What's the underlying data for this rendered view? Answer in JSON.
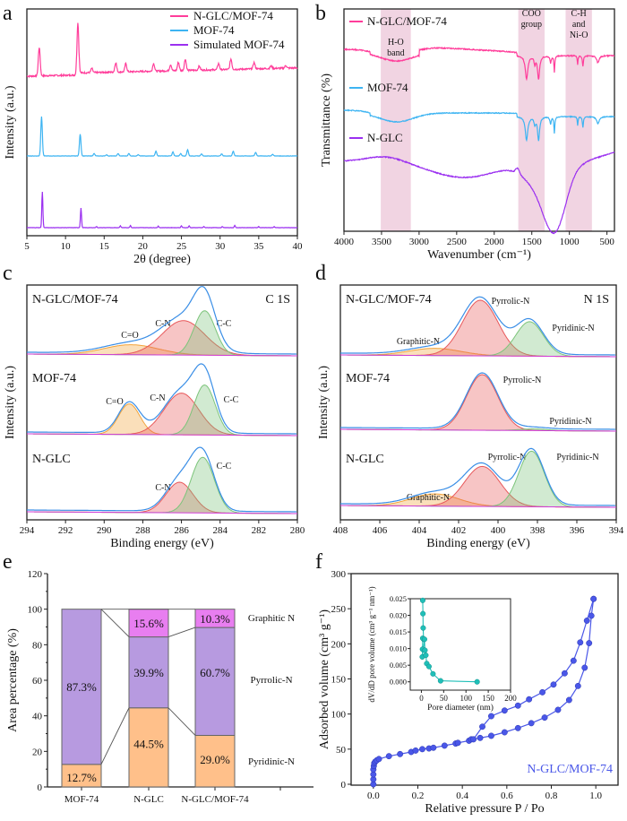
{
  "figure": {
    "panels": [
      "a",
      "b",
      "c",
      "d",
      "e",
      "f"
    ]
  },
  "colors": {
    "ngl_mof": "#ff3d9a",
    "mof": "#3db4f2",
    "sim": "#9b30f0",
    "ngl": "#9b30f0",
    "band": "#ecc6d8",
    "envelope": "#3a8ee6",
    "cn": "#e8585a",
    "cc": "#7cc47a",
    "co": "#f2a33a",
    "baseline": "#d23cd8",
    "pyridinic_bar": "#ffc08a",
    "pyrrolic_bar": "#b79ae0",
    "graphitic_bar": "#e87ef0",
    "isotherm": "#4a57e8",
    "inset": "#1fbfb8"
  },
  "chart_data": [
    {
      "panel": "a",
      "type": "line",
      "title": "",
      "xlabel": "2θ (degree)",
      "ylabel": "Intensity (a.u.)",
      "xlim": [
        5,
        40
      ],
      "xticks": [
        "5",
        "10",
        "15",
        "20",
        "25",
        "30",
        "35",
        "40"
      ],
      "legend_position": "top-right",
      "series": [
        {
          "name": "N-GLC/MOF-74",
          "color_key": "ngl_mof",
          "peaks": [
            [
              6.6,
              0.55
            ],
            [
              11.6,
              1.0
            ],
            [
              13.4,
              0.08
            ],
            [
              16.5,
              0.18
            ],
            [
              17.8,
              0.16
            ],
            [
              21.4,
              0.15
            ],
            [
              23.6,
              0.12
            ],
            [
              24.6,
              0.16
            ],
            [
              25.5,
              0.22
            ],
            [
              27.3,
              0.08
            ],
            [
              29.8,
              0.12
            ],
            [
              31.4,
              0.2
            ],
            [
              34.4,
              0.12
            ],
            [
              36.6,
              0.05
            ],
            [
              38.5,
              0.05
            ]
          ]
        },
        {
          "name": "MOF-74",
          "color_key": "mof",
          "peaks": [
            [
              6.9,
              1.0
            ],
            [
              11.9,
              0.55
            ],
            [
              13.7,
              0.06
            ],
            [
              15.3,
              0.03
            ],
            [
              16.8,
              0.06
            ],
            [
              18.2,
              0.06
            ],
            [
              19.4,
              0.03
            ],
            [
              21.7,
              0.12
            ],
            [
              23.9,
              0.1
            ],
            [
              24.9,
              0.06
            ],
            [
              25.8,
              0.16
            ],
            [
              27.6,
              0.05
            ],
            [
              30.2,
              0.05
            ],
            [
              31.7,
              0.12
            ],
            [
              34.6,
              0.09
            ],
            [
              36.8,
              0.04
            ]
          ]
        },
        {
          "name": "Simulated MOF-74",
          "color_key": "sim",
          "peaks": [
            [
              7.0,
              1.0
            ],
            [
              12.0,
              0.55
            ],
            [
              14.0,
              0.03
            ],
            [
              17.1,
              0.05
            ],
            [
              18.4,
              0.06
            ],
            [
              22.0,
              0.04
            ],
            [
              25.0,
              0.05
            ],
            [
              26.0,
              0.05
            ],
            [
              27.9,
              0.03
            ],
            [
              30.3,
              0.03
            ],
            [
              31.9,
              0.06
            ],
            [
              35.0,
              0.03
            ],
            [
              37.0,
              0.03
            ]
          ]
        }
      ]
    },
    {
      "panel": "b",
      "type": "line",
      "xlabel": "Wavenumber (cm⁻¹)",
      "ylabel": "Transmittance (%)",
      "xlim": [
        4000,
        400
      ],
      "xticks": [
        "4000",
        "3500",
        "3000",
        "2500",
        "2000",
        "1500",
        "1000",
        "500"
      ],
      "legend_position": "top-left",
      "bands": [
        {
          "label_lines": [
            "H-O",
            "band"
          ],
          "range": [
            3510,
            3110
          ]
        },
        {
          "label_lines": [
            "COO",
            "group"
          ],
          "range": [
            1680,
            1330
          ]
        },
        {
          "label_lines": [
            "C-H",
            "and",
            "Ni-O"
          ],
          "range": [
            1050,
            700
          ]
        }
      ],
      "series": [
        {
          "name": "N-GLC/MOF-74",
          "color_key": "ngl_mof"
        },
        {
          "name": "MOF-74",
          "color_key": "mof"
        },
        {
          "name": "N-GLC",
          "color_key": "ngl"
        }
      ]
    },
    {
      "panel": "c",
      "type": "area",
      "xlabel": "Binding energy (eV)",
      "ylabel": "Intensity (a.u.)",
      "xlim": [
        294,
        280
      ],
      "xticks": [
        "294",
        "292",
        "290",
        "288",
        "286",
        "284",
        "282",
        "280"
      ],
      "corner_label": "C 1S",
      "samples": [
        {
          "name": "N-GLC/MOF-74",
          "components": [
            {
              "label": "C=O",
              "center": 288.6,
              "height": 0.18,
              "width": 1.4,
              "color_key": "co"
            },
            {
              "label": "C-N",
              "center": 285.9,
              "height": 0.62,
              "width": 1.1,
              "color_key": "cn"
            },
            {
              "label": "C-C",
              "center": 284.8,
              "height": 0.8,
              "width": 0.55,
              "color_key": "cc"
            }
          ]
        },
        {
          "name": "MOF-74",
          "components": [
            {
              "label": "C=O",
              "center": 288.7,
              "height": 0.55,
              "width": 0.55,
              "color_key": "co"
            },
            {
              "label": "C-N",
              "center": 286.0,
              "height": 0.75,
              "width": 0.9,
              "color_key": "cn"
            },
            {
              "label": "C-C",
              "center": 284.8,
              "height": 0.9,
              "width": 0.55,
              "color_key": "cc"
            }
          ]
        },
        {
          "name": "N-GLC",
          "components": [
            {
              "label": "C-N",
              "center": 286.1,
              "height": 0.55,
              "width": 0.7,
              "color_key": "cn"
            },
            {
              "label": "C-C",
              "center": 284.9,
              "height": 1.0,
              "width": 0.6,
              "color_key": "cc"
            }
          ]
        }
      ]
    },
    {
      "panel": "d",
      "type": "area",
      "xlabel": "Binding energy (eV)",
      "ylabel": "Intensity (a.u.)",
      "xlim": [
        408,
        394
      ],
      "xticks": [
        "408",
        "406",
        "404",
        "402",
        "400",
        "398",
        "396",
        "394"
      ],
      "corner_label": "N 1S",
      "samples": [
        {
          "name": "N-GLC/MOF-74",
          "components": [
            {
              "label": "Graphitic-N",
              "center": 403.2,
              "height": 0.13,
              "width": 1.3,
              "color_key": "co"
            },
            {
              "label": "Pyrrolic-N",
              "center": 400.9,
              "height": 1.0,
              "width": 0.9,
              "color_key": "cn"
            },
            {
              "label": "Pyridinic-N",
              "center": 398.4,
              "height": 0.62,
              "width": 0.7,
              "color_key": "cc"
            }
          ]
        },
        {
          "name": "MOF-74",
          "components": [
            {
              "label": "Pyrrolic-N",
              "center": 400.8,
              "height": 1.0,
              "width": 0.8,
              "color_key": "cn"
            },
            {
              "label": "Pyridinic-N",
              "center": 398.2,
              "height": 0.03,
              "width": 0.7,
              "color_key": "cc"
            }
          ]
        },
        {
          "name": "N-GLC",
          "components": [
            {
              "label": "Graphitic-N",
              "center": 403.2,
              "height": 0.22,
              "width": 1.2,
              "color_key": "co"
            },
            {
              "label": "Pyrrolic-N",
              "center": 400.8,
              "height": 0.72,
              "width": 0.9,
              "color_key": "cn"
            },
            {
              "label": "Pyridinic-N",
              "center": 398.3,
              "height": 1.0,
              "width": 0.65,
              "color_key": "cc"
            }
          ]
        }
      ]
    },
    {
      "panel": "e",
      "type": "bar",
      "stacked": true,
      "xlabel": "",
      "ylabel": "Area percentage (%)",
      "ylim": [
        0,
        120
      ],
      "yticks": [
        "0",
        "20",
        "40",
        "60",
        "80",
        "100",
        "120"
      ],
      "categories": [
        "MOF-74",
        "N-GLC",
        "N-GLC/MOF-74"
      ],
      "series": [
        {
          "name": "Pyridinic-N",
          "values": [
            12.7,
            44.5,
            29.0
          ],
          "labels": [
            "12.7%",
            "44.5%",
            "29.0%"
          ],
          "color_key": "pyridinic_bar"
        },
        {
          "name": "Pyrrolic-N",
          "values": [
            87.3,
            39.9,
            60.7
          ],
          "labels": [
            "87.3%",
            "39.9%",
            "60.7%"
          ],
          "color_key": "pyrrolic_bar"
        },
        {
          "name": "Graphitic N",
          "values": [
            0,
            15.6,
            10.3
          ],
          "labels": [
            "",
            "15.6%",
            "10.3%"
          ],
          "color_key": "graphitic_bar"
        }
      ],
      "legend_position": "right"
    },
    {
      "panel": "f",
      "type": "scatter",
      "xlabel": "Relative pressure P / Po",
      "ylabel": "Adsorbed volume (cm³ g⁻¹)",
      "xlim": [
        -0.1,
        1.1
      ],
      "ylim": [
        0,
        300
      ],
      "xticks": [
        "0.0",
        "0.2",
        "0.4",
        "0.6",
        "0.8",
        "1.0"
      ],
      "yticks": [
        "0",
        "50",
        "100",
        "150",
        "200",
        "250",
        "300"
      ],
      "annotation": "N-GLC/MOF-74",
      "series": [
        {
          "name": "adsorption",
          "x": [
            0.0,
            0.0,
            0.0,
            0.0,
            0.002,
            0.004,
            0.008,
            0.015,
            0.025,
            0.07,
            0.12,
            0.17,
            0.19,
            0.22,
            0.25,
            0.27,
            0.32,
            0.37,
            0.38,
            0.43,
            0.44,
            0.48,
            0.53,
            0.59,
            0.65,
            0.71,
            0.77,
            0.83,
            0.88,
            0.92,
            0.95,
            0.97,
            0.98,
            0.99
          ],
          "y": [
            0,
            7,
            14,
            21,
            26,
            30,
            32,
            34,
            36,
            40,
            43,
            46,
            48,
            50,
            51,
            52,
            55,
            58,
            59,
            62,
            64,
            66,
            69,
            74,
            80,
            87,
            95,
            106,
            120,
            140,
            166,
            201,
            240,
            264
          ]
        },
        {
          "name": "desorption",
          "x": [
            0.99,
            0.96,
            0.93,
            0.9,
            0.86,
            0.81,
            0.76,
            0.7,
            0.65,
            0.59,
            0.53,
            0.49,
            0.45
          ],
          "y": [
            264,
            233,
            202,
            176,
            158,
            142,
            131,
            121,
            112,
            105,
            97,
            82,
            64
          ]
        }
      ],
      "inset": {
        "xlabel": "Pore diameter (nm)",
        "ylabel": "dV/dD pore volume (cm³ g⁻¹ nm⁻¹)",
        "xlim": [
          -25,
          200
        ],
        "ylim": [
          -0.0025,
          0.025
        ],
        "xticks": [
          "0",
          "50",
          "100",
          "150",
          "200"
        ],
        "yticks": [
          "0.000",
          "0.005",
          "0.010",
          "0.015",
          "0.020",
          "0.025"
        ],
        "x": [
          3,
          3.5,
          4,
          5,
          3,
          2.5,
          2,
          7,
          8,
          10,
          12,
          17,
          26,
          43,
          125
        ],
        "y": [
          0.0245,
          0.0205,
          0.0162,
          0.0128,
          0.0131,
          0.0098,
          0.0075,
          0.0128,
          0.0095,
          0.008,
          0.0055,
          0.0046,
          0.0024,
          0.0003,
          0.0
        ]
      }
    }
  ]
}
